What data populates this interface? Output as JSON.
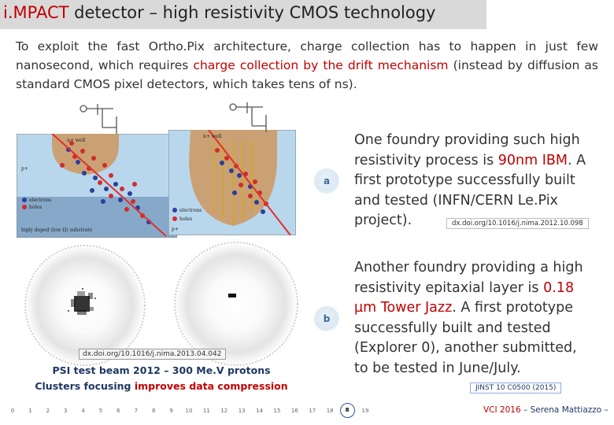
{
  "title": {
    "accent": "i.MPACT",
    "rest": " detector – high resistivity CMOS technology"
  },
  "intro": {
    "part1": "To exploit the fast Ortho.Pix architecture, charge collection has to happen in just few nanosecond, which requires ",
    "highlight": "charge collection by the drift mechanism",
    "part2": " (instead by diffusion as standard CMOS pixel detectors, which takes tens of ns)."
  },
  "figure_left": {
    "nwell": "n+ well",
    "p": "p+",
    "electrons": "electrons",
    "holes": "holes",
    "substrate": "higly doped (low Ω) substrate"
  },
  "figure_right": {
    "nwell": "n+ well",
    "electrons": "electrons",
    "holes": "holes",
    "p": "p+"
  },
  "item_a": {
    "letter": "a",
    "text1": "One foundry providing such high resistivity process is ",
    "highlight": "90nm IBM",
    "text2": ". A first prototype successfully built and tested (INFN/CERN Le.Pix project).",
    "ref": "dx.doi.org/10.1016/j.nima.2012.10.098"
  },
  "item_b": {
    "letter": "b",
    "text1": "Another foundry providing a high resistivity epitaxial layer is ",
    "highlight": "0.18 µm Tower Jazz",
    "text2": ". A first prototype successfully built and tested (Explorer 0), another submitted, to be tested in June/July.",
    "ref": "JINST 10 C0500 (2015)"
  },
  "psi": {
    "ref": "dx.doi.org/10.1016/j.nima.2013.04.042",
    "caption_line1": "PSI test beam 2012 – 300 Me.V protons",
    "caption_line2_pre": "Clusters focusing ",
    "caption_line2_hl": "improves data compression"
  },
  "page_numbers": [
    "0",
    "1",
    "2",
    "3",
    "4",
    "5",
    "6",
    "7",
    "8",
    "9",
    "10",
    "11",
    "12",
    "13",
    "14",
    "15",
    "16",
    "17",
    "18",
    "8",
    "19"
  ],
  "current_page": "8",
  "footer": {
    "event": "VCI 2016",
    "author": " – Serena Mattiazzo –"
  }
}
